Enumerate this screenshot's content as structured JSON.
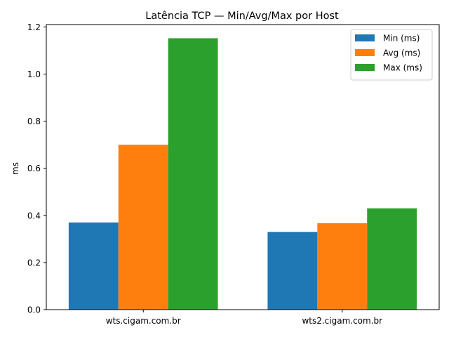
{
  "chart_data": {
    "type": "bar",
    "title": "Latência TCP — Min/Avg/Max por Host",
    "xlabel": "",
    "ylabel": "ms",
    "categories": [
      "wts.cigam.com.br",
      "wts2.cigam.com.br"
    ],
    "series": [
      {
        "name": "Min (ms)",
        "color": "#1f77b4",
        "values": [
          0.37,
          0.33
        ]
      },
      {
        "name": "Avg (ms)",
        "color": "#ff7f0e",
        "values": [
          0.7,
          0.367
        ]
      },
      {
        "name": "Max (ms)",
        "color": "#2ca02c",
        "values": [
          1.152,
          0.43
        ]
      }
    ],
    "ylim": [
      0,
      1.21
    ],
    "yticks": [
      "0.0",
      "0.2",
      "0.4",
      "0.6",
      "0.8",
      "1.0",
      "1.2"
    ],
    "grid": false,
    "legend_position": "top-right"
  }
}
